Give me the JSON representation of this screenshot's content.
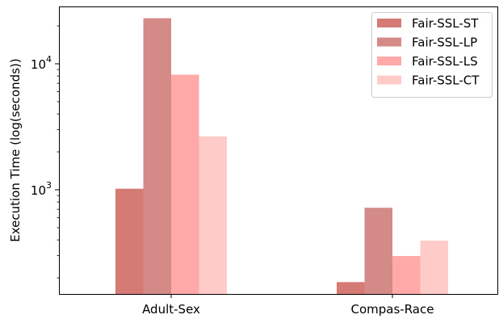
{
  "chart_data": {
    "type": "bar",
    "title": "",
    "xlabel": "",
    "ylabel": "Execution Time (log(seconds))",
    "yscale": "log",
    "ylim": [
      150,
      30000
    ],
    "categories": [
      "Adult-Sex",
      "Compas-Race"
    ],
    "series": [
      {
        "name": "Fair-SSL-ST",
        "color": "#d67a76",
        "values": [
          1020,
          185
        ]
      },
      {
        "name": "Fair-SSL-LP",
        "color": "#d48b87",
        "values": [
          23000,
          720
        ]
      },
      {
        "name": "Fair-SSL-LS",
        "color": "#ffaaa8",
        "values": [
          8200,
          298
        ]
      },
      {
        "name": "Fair-SSL-CT",
        "color": "#ffcbc9",
        "values": [
          2650,
          395
        ]
      }
    ],
    "major_ticks": [
      {
        "value": 1000,
        "base": "10",
        "exp": "3"
      },
      {
        "value": 10000,
        "base": "10",
        "exp": "4"
      }
    ],
    "legend_position": "top-right",
    "grid": false
  }
}
